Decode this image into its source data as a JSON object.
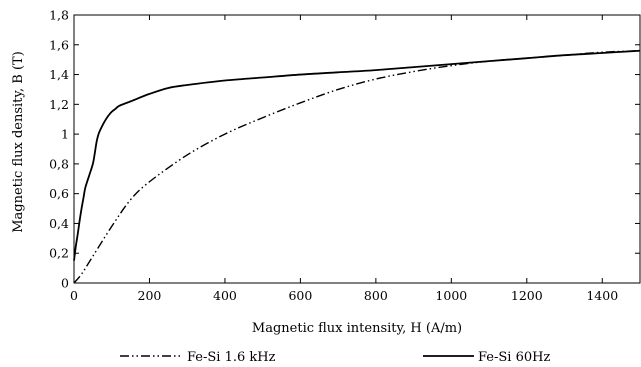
{
  "chart_data": {
    "type": "line",
    "title": "",
    "xlabel": "Magnetic flux intensity, H (A/m)",
    "ylabel": "Magnetic flux density, B (T)",
    "xlim": [
      0,
      1500
    ],
    "ylim": [
      0,
      1.8
    ],
    "x_ticks": [
      0,
      200,
      400,
      600,
      800,
      1000,
      1200,
      1400
    ],
    "x_tick_labels": [
      "0",
      "200",
      "400",
      "600",
      "800",
      "1000",
      "1200",
      "1400"
    ],
    "y_ticks": [
      0,
      0.2,
      0.4,
      0.6,
      0.8,
      1.0,
      1.2,
      1.4,
      1.6,
      1.8
    ],
    "y_tick_labels": [
      "0",
      "0,2",
      "0,4",
      "0,6",
      "0,8",
      "1",
      "1,2",
      "1,4",
      "1,6",
      "1,8"
    ],
    "grid": false,
    "legend_position": "bottom",
    "series": [
      {
        "name": "Fe-Si 1.6 kHz",
        "line_style": "dash-dot-dot",
        "color": "#000000",
        "x": [
          0,
          20,
          50,
          100,
          150,
          200,
          300,
          400,
          500,
          600,
          700,
          800,
          900,
          1000,
          1100,
          1200,
          1300,
          1400,
          1500
        ],
        "y": [
          0.0,
          0.06,
          0.18,
          0.38,
          0.56,
          0.68,
          0.86,
          1.0,
          1.11,
          1.21,
          1.3,
          1.37,
          1.42,
          1.46,
          1.49,
          1.51,
          1.53,
          1.55,
          1.56
        ]
      },
      {
        "name": "Fe-Si 60Hz",
        "line_style": "solid",
        "color": "#000000",
        "x": [
          0,
          5,
          10,
          15,
          20,
          25,
          30,
          40,
          50,
          55,
          60,
          65,
          70,
          80,
          90,
          100,
          110,
          120,
          150,
          200,
          250,
          300,
          400,
          500,
          600,
          700,
          800,
          900,
          1000,
          1100,
          1200,
          1300,
          1400,
          1500
        ],
        "y": [
          0.15,
          0.25,
          0.33,
          0.42,
          0.5,
          0.57,
          0.64,
          0.72,
          0.8,
          0.87,
          0.95,
          1.0,
          1.03,
          1.08,
          1.12,
          1.15,
          1.17,
          1.19,
          1.22,
          1.27,
          1.31,
          1.33,
          1.36,
          1.38,
          1.4,
          1.415,
          1.43,
          1.45,
          1.47,
          1.49,
          1.51,
          1.53,
          1.545,
          1.56
        ]
      }
    ]
  }
}
